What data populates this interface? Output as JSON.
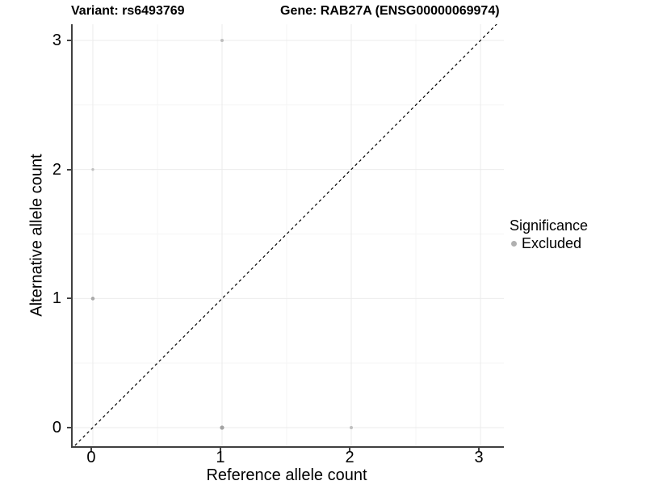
{
  "titles": {
    "variant": "Variant: rs6493769",
    "gene": "Gene: RAB27A (ENSG00000069974)"
  },
  "axes": {
    "x": {
      "label": "Reference allele count",
      "ticks": [
        "0",
        "1",
        "2",
        "3"
      ]
    },
    "y": {
      "label": "Alternative allele count",
      "ticks": [
        "0",
        "1",
        "2",
        "3"
      ]
    }
  },
  "legend": {
    "title": "Significance",
    "items": [
      {
        "label": "Excluded",
        "color": "#b0b0b0"
      }
    ]
  },
  "style": {
    "axis_color": "#404040",
    "major_grid_color": "#ebebeb",
    "minor_grid_color": "#f5f5f5",
    "dashed_line_color": "#000000",
    "background": "#ffffff"
  },
  "chart_data": {
    "type": "scatter",
    "title": "Variant: rs6493769 | Gene: RAB27A (ENSG00000069974)",
    "xlabel": "Reference allele count",
    "ylabel": "Alternative allele count",
    "xlim": [
      -0.156,
      3.181
    ],
    "ylim": [
      -0.144,
      3.125
    ],
    "x_ticks": [
      0,
      1,
      2,
      3
    ],
    "y_ticks": [
      0,
      1,
      2,
      3
    ],
    "grid": {
      "major": true,
      "minor": true
    },
    "legend_position": "right",
    "identity_line": {
      "style": "dashed",
      "color": "#000000",
      "from": [
        -0.2,
        -0.2
      ],
      "to": [
        3.4,
        3.4
      ],
      "dash": [
        3.5,
        3.5
      ]
    },
    "series": [
      {
        "name": "Excluded",
        "points": [
          {
            "x": 1,
            "y": 3,
            "r": 2.0,
            "color": "#bdbdbd"
          },
          {
            "x": 0,
            "y": 2,
            "r": 1.7,
            "color": "#c0c0c0"
          },
          {
            "x": 0,
            "y": 1,
            "r": 2.3,
            "color": "#ababab"
          },
          {
            "x": 1,
            "y": 0,
            "r": 2.6,
            "color": "#a3a3a3"
          },
          {
            "x": 2,
            "y": 0,
            "r": 2.0,
            "color": "#bfbfbf"
          }
        ]
      }
    ]
  }
}
